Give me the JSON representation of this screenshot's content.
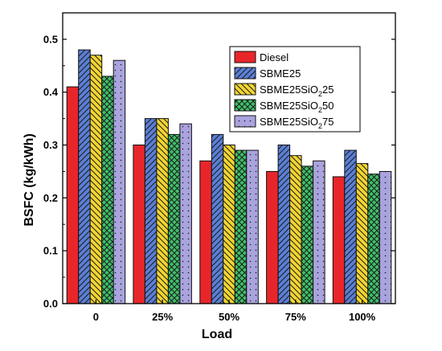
{
  "chart_data": {
    "type": "bar",
    "xlabel": "Load",
    "ylabel": "BSFC (kg/kWh)",
    "categories": [
      "0",
      "25%",
      "50%",
      "75%",
      "100%"
    ],
    "ylim": [
      0,
      0.55
    ],
    "yticks": [
      "0.0",
      "0.1",
      "0.2",
      "0.3",
      "0.4",
      "0.5"
    ],
    "legend_position": "top-right",
    "series": [
      {
        "name": "Diesel",
        "values": [
          0.41,
          0.3,
          0.27,
          0.25,
          0.24
        ],
        "color": "#e8262a",
        "pattern": "solid"
      },
      {
        "name": "SBME25",
        "values": [
          0.48,
          0.35,
          0.32,
          0.3,
          0.29
        ],
        "color": "#5b7fd6",
        "pattern": "diagonal"
      },
      {
        "name": "SBME25SiO₂ 25",
        "label_parts": [
          "SBME25SiO",
          "2",
          "25"
        ],
        "values": [
          0.47,
          0.35,
          0.3,
          0.28,
          0.265
        ],
        "color": "#f2d531",
        "pattern": "backdiagonal"
      },
      {
        "name": "SBME25SiO₂ 50",
        "label_parts": [
          "SBME25SiO",
          "2",
          "50"
        ],
        "values": [
          0.43,
          0.32,
          0.29,
          0.26,
          0.245
        ],
        "color": "#3fc16a",
        "pattern": "crosshatch"
      },
      {
        "name": "SBME25SiO₂ 75",
        "label_parts": [
          "SBME25SiO",
          "2",
          "75"
        ],
        "values": [
          0.46,
          0.34,
          0.29,
          0.27,
          0.25
        ],
        "color": "#a9a3de",
        "pattern": "dots"
      }
    ]
  }
}
